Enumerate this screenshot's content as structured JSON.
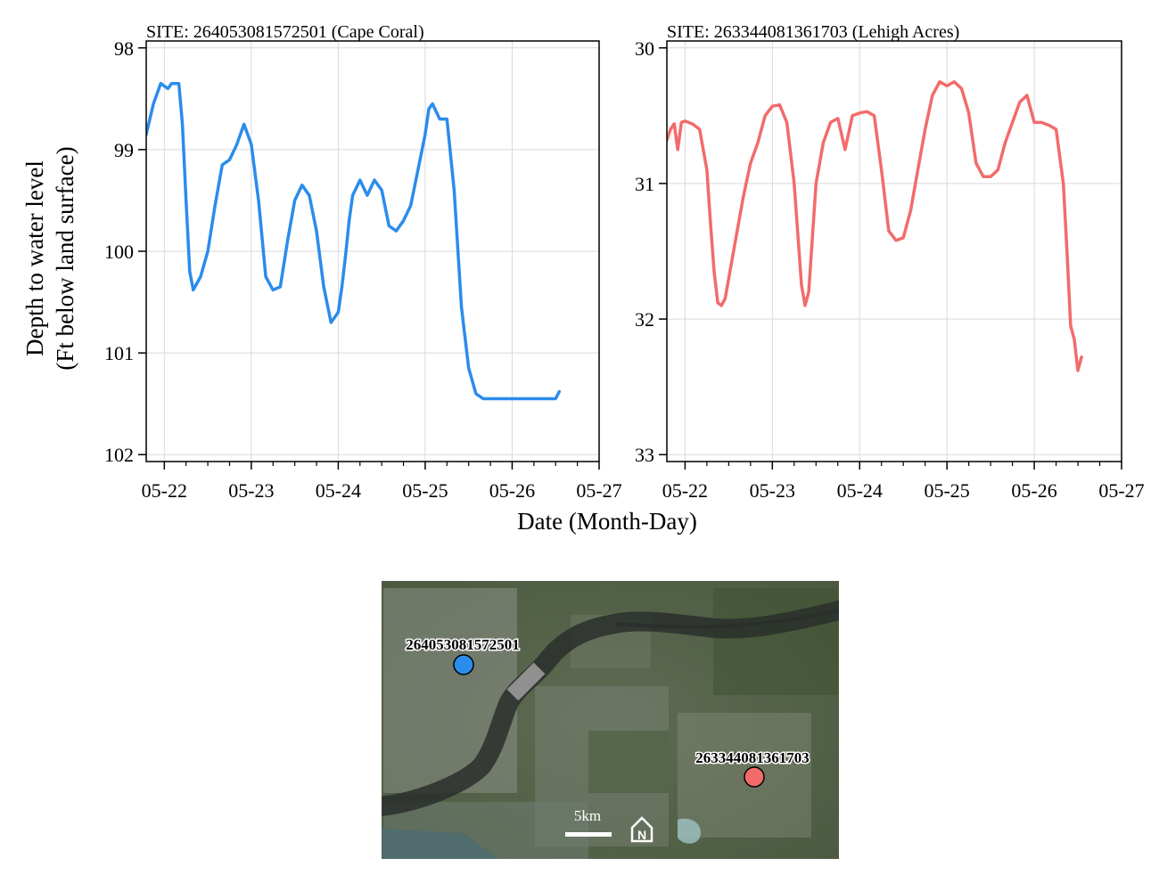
{
  "chart_data": [
    {
      "type": "line",
      "title": "SITE: 264053081572501 (Cape Coral)",
      "xlabel": "Date (Month-Day)",
      "ylabel": [
        "Depth to water level",
        "(Ft below land surface)"
      ],
      "y_reversed": true,
      "ylim": [
        102,
        98
      ],
      "yticks": [
        98,
        99,
        100,
        101,
        102
      ],
      "xlim": [
        "2022-05-21 19:00",
        "2022-05-27 00:00"
      ],
      "xticks": [
        "05-22",
        "05-23",
        "05-24",
        "05-25",
        "05-26",
        "05-27"
      ],
      "grid": true,
      "series": [
        {
          "color": "#2b8ceb",
          "x": [
            "05-21 19:00",
            "05-21 21:00",
            "05-21 23:00",
            "05-22 01:00",
            "05-22 02:00",
            "05-22 04:00",
            "05-22 05:00",
            "05-22 06:00",
            "05-22 07:00",
            "05-22 08:00",
            "05-22 10:00",
            "05-22 12:00",
            "05-22 14:00",
            "05-22 16:00",
            "05-22 18:00",
            "05-22 20:00",
            "05-22 22:00",
            "05-23 00:00",
            "05-23 02:00",
            "05-23 04:00",
            "05-23 06:00",
            "05-23 08:00",
            "05-23 10:00",
            "05-23 12:00",
            "05-23 14:00",
            "05-23 15:00",
            "05-23 16:00",
            "05-23 18:00",
            "05-23 20:00",
            "05-23 22:00",
            "05-24 00:00",
            "05-24 01:00",
            "05-24 02:00",
            "05-24 03:00",
            "05-24 04:00",
            "05-24 06:00",
            "05-24 08:00",
            "05-24 10:00",
            "05-24 12:00",
            "05-24 14:00",
            "05-24 16:00",
            "05-24 18:00",
            "05-24 20:00",
            "05-24 22:00",
            "05-25 00:00",
            "05-25 01:00",
            "05-25 02:00",
            "05-25 04:00",
            "05-25 06:00",
            "05-25 08:00",
            "05-25 10:00",
            "05-25 12:00",
            "05-25 14:00",
            "05-25 16:00",
            "05-25 18:00",
            "05-25 20:00",
            "05-25 22:00",
            "05-26 00:00",
            "05-26 02:00",
            "05-26 03:00",
            "05-26 04:00",
            "05-26 05:00",
            "05-26 06:00",
            "05-26 08:00",
            "05-26 10:00",
            "05-26 11:00",
            "05-26 12:00",
            "05-26 13:00"
          ],
          "y": [
            98.85,
            98.55,
            98.35,
            98.4,
            98.35,
            98.35,
            98.75,
            99.5,
            100.2,
            100.38,
            100.25,
            100.0,
            99.55,
            99.15,
            99.1,
            98.95,
            98.75,
            98.95,
            99.5,
            100.25,
            100.38,
            100.35,
            99.9,
            99.5,
            99.35,
            99.4,
            99.45,
            99.8,
            100.35,
            100.7,
            100.6,
            100.35,
            100.05,
            99.7,
            99.45,
            99.3,
            99.45,
            99.3,
            99.4,
            99.75,
            99.8,
            99.7,
            99.55,
            99.2,
            98.85,
            98.6,
            98.55,
            98.7,
            98.7,
            99.4,
            100.55,
            101.15,
            101.4,
            101.45,
            101.45,
            101.45,
            101.45,
            101.45,
            101.45,
            101.45,
            101.45,
            101.45,
            101.45,
            101.45,
            101.45,
            101.45,
            101.45,
            101.38
          ]
        }
      ]
    },
    {
      "type": "line",
      "title": "SITE: 263344081361703 (Lehigh Acres)",
      "xlabel": "Date (Month-Day)",
      "y_reversed": true,
      "ylim": [
        33,
        30
      ],
      "yticks": [
        30,
        31,
        32,
        33
      ],
      "xlim": [
        "2022-05-21 19:00",
        "2022-05-27 00:00"
      ],
      "xticks": [
        "05-22",
        "05-23",
        "05-24",
        "05-25",
        "05-26",
        "05-27"
      ],
      "grid": true,
      "series": [
        {
          "color": "#f26b6b",
          "x": [
            "05-21 19:00",
            "05-21 20:00",
            "05-21 21:00",
            "05-21 22:00",
            "05-21 23:00",
            "05-22 00:00",
            "05-22 02:00",
            "05-22 04:00",
            "05-22 06:00",
            "05-22 07:00",
            "05-22 08:00",
            "05-22 09:00",
            "05-22 10:00",
            "05-22 11:00",
            "05-22 12:00",
            "05-22 14:00",
            "05-22 16:00",
            "05-22 18:00",
            "05-22 20:00",
            "05-22 22:00",
            "05-23 00:00",
            "05-23 02:00",
            "05-23 04:00",
            "05-23 06:00",
            "05-23 08:00",
            "05-23 09:00",
            "05-23 10:00",
            "05-23 11:00",
            "05-23 12:00",
            "05-23 14:00",
            "05-23 16:00",
            "05-23 18:00",
            "05-23 20:00",
            "05-23 22:00",
            "05-24 00:00",
            "05-24 02:00",
            "05-24 04:00",
            "05-24 06:00",
            "05-24 08:00",
            "05-24 10:00",
            "05-24 12:00",
            "05-24 14:00",
            "05-24 16:00",
            "05-24 18:00",
            "05-24 20:00",
            "05-24 22:00",
            "05-25 00:00",
            "05-25 02:00",
            "05-25 04:00",
            "05-25 06:00",
            "05-25 08:00",
            "05-25 10:00",
            "05-25 12:00",
            "05-25 14:00",
            "05-25 16:00",
            "05-25 18:00",
            "05-25 20:00",
            "05-25 22:00",
            "05-26 00:00",
            "05-26 02:00",
            "05-26 04:00",
            "05-26 06:00",
            "05-26 08:00",
            "05-26 09:00",
            "05-26 10:00",
            "05-26 11:00",
            "05-26 12:00",
            "05-26 13:00"
          ],
          "y": [
            30.68,
            30.6,
            30.56,
            30.75,
            30.55,
            30.54,
            30.56,
            30.6,
            30.9,
            31.3,
            31.65,
            31.88,
            31.9,
            31.85,
            31.7,
            31.4,
            31.1,
            30.85,
            30.7,
            30.5,
            30.43,
            30.42,
            30.55,
            31.0,
            31.75,
            31.9,
            31.8,
            31.4,
            31.0,
            30.7,
            30.55,
            30.52,
            30.75,
            30.5,
            30.48,
            30.47,
            30.5,
            30.9,
            31.35,
            31.42,
            31.4,
            31.2,
            30.9,
            30.6,
            30.35,
            30.25,
            30.28,
            30.25,
            30.3,
            30.48,
            30.85,
            30.95,
            30.95,
            30.9,
            30.7,
            30.55,
            30.4,
            30.35,
            30.55,
            30.55,
            30.57,
            30.6,
            31.0,
            31.5,
            32.05,
            32.15,
            32.38,
            32.28
          ]
        }
      ]
    }
  ],
  "map": {
    "sites": [
      {
        "id": "264053081572501",
        "color": "#2b8ceb"
      },
      {
        "id": "263344081361703",
        "color": "#f26b6b"
      }
    ],
    "scale_label": "5km",
    "north_label": "N"
  }
}
